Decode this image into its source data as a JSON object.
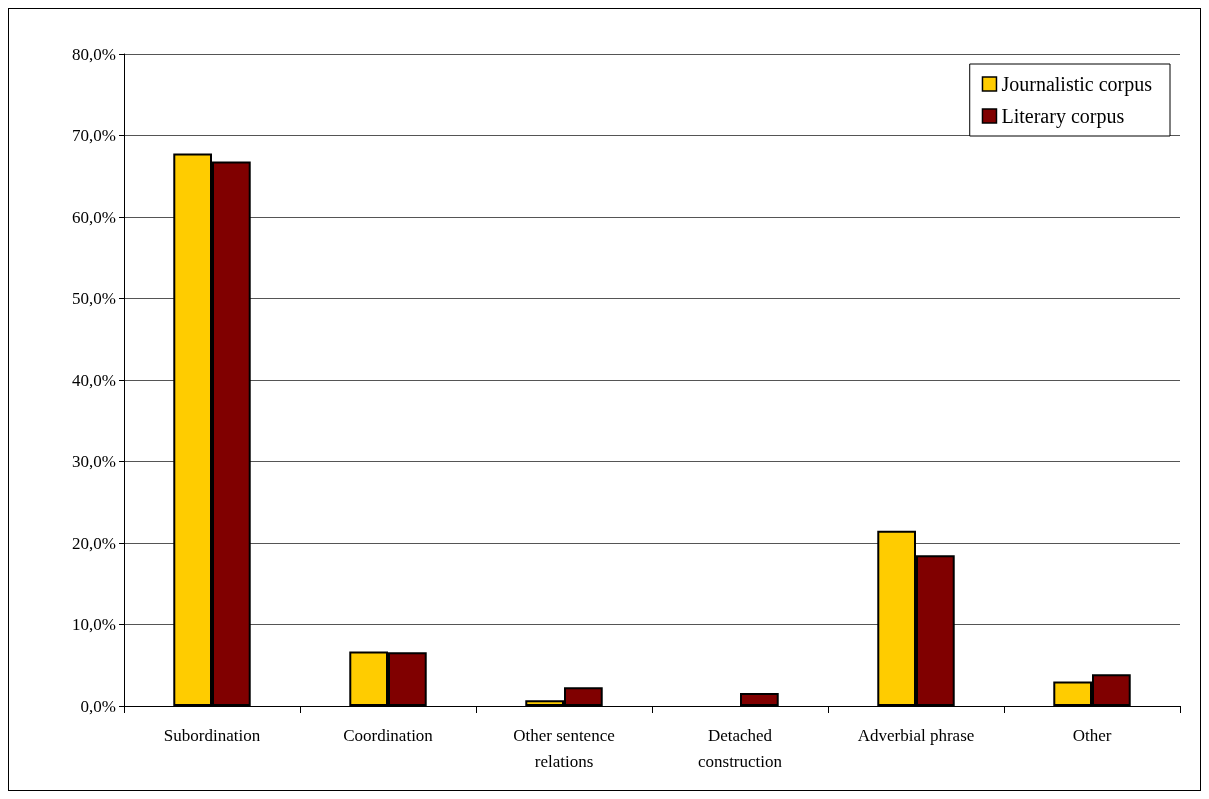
{
  "chart_data": {
    "type": "bar",
    "categories": [
      "Subordination",
      "Coordination",
      "Other sentence relations",
      "Detached construction",
      "Adverbial phrase",
      "Other"
    ],
    "series": [
      {
        "name": "Journalistic corpus",
        "color": "#ffcc00",
        "values": [
          67.8,
          6.7,
          0.7,
          null,
          21.5,
          3.0
        ]
      },
      {
        "name": "Literary corpus",
        "color": "#800000",
        "values": [
          66.8,
          6.6,
          2.3,
          1.6,
          18.5,
          3.9
        ]
      }
    ],
    "ylim": [
      0,
      80
    ],
    "yticks": [
      {
        "value": 0,
        "label": "0,0%"
      },
      {
        "value": 10,
        "label": "10,0%"
      },
      {
        "value": 20,
        "label": "20,0%"
      },
      {
        "value": 30,
        "label": "30,0%"
      },
      {
        "value": 40,
        "label": "40,0%"
      },
      {
        "value": 50,
        "label": "50,0%"
      },
      {
        "value": 60,
        "label": "60,0%"
      },
      {
        "value": 70,
        "label": "70,0%"
      },
      {
        "value": 80,
        "label": "80,0%"
      }
    ],
    "grid": "y",
    "legend": "top right"
  }
}
